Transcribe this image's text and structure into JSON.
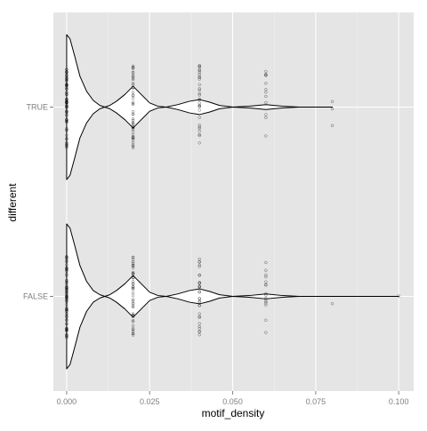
{
  "chart_data": {
    "type": "violin",
    "orientation": "horizontal",
    "title": "",
    "xlabel": "motif_density",
    "ylabel": "different",
    "xlim": [
      -0.004,
      0.1045
    ],
    "x_ticks": [
      0.0,
      0.025,
      0.05,
      0.075,
      0.1
    ],
    "x_tick_labels": [
      "0.000",
      "0.025",
      "0.050",
      "0.075",
      "0.100"
    ],
    "categories": [
      "TRUE",
      "FALSE"
    ],
    "grid": true,
    "legend": "none",
    "background_color": "#e5e5e5",
    "grid_color": "#ffffff",
    "violin_line_color": "#000000",
    "violin_fill_color": "#ffffff",
    "point_color": "#000000",
    "series": [
      {
        "category": "TRUE",
        "density": [
          {
            "x": 0.0,
            "w": 0.87
          },
          {
            "x": 0.001,
            "w": 0.82
          },
          {
            "x": 0.0025,
            "w": 0.6
          },
          {
            "x": 0.004,
            "w": 0.37
          },
          {
            "x": 0.006,
            "w": 0.19
          },
          {
            "x": 0.008,
            "w": 0.08
          },
          {
            "x": 0.01,
            "w": 0.02
          },
          {
            "x": 0.0115,
            "w": 0.0
          },
          {
            "x": 0.013,
            "w": 0.02
          },
          {
            "x": 0.015,
            "w": 0.07
          },
          {
            "x": 0.0175,
            "w": 0.15
          },
          {
            "x": 0.02,
            "w": 0.25
          },
          {
            "x": 0.0225,
            "w": 0.15
          },
          {
            "x": 0.025,
            "w": 0.05
          },
          {
            "x": 0.0275,
            "w": 0.01
          },
          {
            "x": 0.03,
            "w": 0.0
          },
          {
            "x": 0.0335,
            "w": 0.03
          },
          {
            "x": 0.037,
            "w": 0.07
          },
          {
            "x": 0.04,
            "w": 0.09
          },
          {
            "x": 0.043,
            "w": 0.06
          },
          {
            "x": 0.046,
            "w": 0.02
          },
          {
            "x": 0.05,
            "w": 0.0
          },
          {
            "x": 0.055,
            "w": 0.01
          },
          {
            "x": 0.06,
            "w": 0.03
          },
          {
            "x": 0.065,
            "w": 0.01
          },
          {
            "x": 0.07,
            "w": 0.0
          },
          {
            "x": 0.08,
            "w": 0.0
          }
        ],
        "points": [
          {
            "x": 0.0,
            "n": 70
          },
          {
            "x": 0.02,
            "n": 45
          },
          {
            "x": 0.04,
            "n": 30
          },
          {
            "x": 0.06,
            "n": 12
          },
          {
            "x": 0.08,
            "n": 3
          }
        ]
      },
      {
        "category": "FALSE",
        "density": [
          {
            "x": 0.0,
            "w": 0.87
          },
          {
            "x": 0.001,
            "w": 0.82
          },
          {
            "x": 0.0025,
            "w": 0.6
          },
          {
            "x": 0.004,
            "w": 0.37
          },
          {
            "x": 0.006,
            "w": 0.18
          },
          {
            "x": 0.008,
            "w": 0.07
          },
          {
            "x": 0.01,
            "w": 0.02
          },
          {
            "x": 0.0115,
            "w": 0.0
          },
          {
            "x": 0.013,
            "w": 0.02
          },
          {
            "x": 0.015,
            "w": 0.07
          },
          {
            "x": 0.0175,
            "w": 0.15
          },
          {
            "x": 0.02,
            "w": 0.25
          },
          {
            "x": 0.0225,
            "w": 0.15
          },
          {
            "x": 0.025,
            "w": 0.05
          },
          {
            "x": 0.0275,
            "w": 0.01
          },
          {
            "x": 0.03,
            "w": 0.0
          },
          {
            "x": 0.0335,
            "w": 0.03
          },
          {
            "x": 0.037,
            "w": 0.07
          },
          {
            "x": 0.04,
            "w": 0.09
          },
          {
            "x": 0.043,
            "w": 0.06
          },
          {
            "x": 0.046,
            "w": 0.02
          },
          {
            "x": 0.05,
            "w": 0.0
          },
          {
            "x": 0.055,
            "w": 0.01
          },
          {
            "x": 0.06,
            "w": 0.03
          },
          {
            "x": 0.065,
            "w": 0.01
          },
          {
            "x": 0.07,
            "w": 0.0
          },
          {
            "x": 0.1,
            "w": 0.0
          }
        ],
        "points": [
          {
            "x": 0.0,
            "n": 70
          },
          {
            "x": 0.02,
            "n": 45
          },
          {
            "x": 0.04,
            "n": 30
          },
          {
            "x": 0.06,
            "n": 16
          },
          {
            "x": 0.08,
            "n": 1
          },
          {
            "x": 0.1,
            "n": 1
          }
        ]
      }
    ]
  }
}
